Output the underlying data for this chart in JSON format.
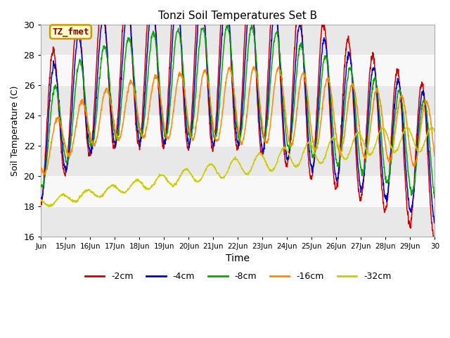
{
  "title": "Tonzi Soil Temperatures Set B",
  "xlabel": "Time",
  "ylabel": "Soil Temperature (C)",
  "ylim": [
    16,
    30
  ],
  "yticks": [
    16,
    18,
    20,
    22,
    24,
    26,
    28,
    30
  ],
  "legend_labels": [
    "-2cm",
    "-4cm",
    "-8cm",
    "-16cm",
    "-32cm"
  ],
  "line_colors": [
    "#cc0000",
    "#0000cc",
    "#00aa00",
    "#ff8800",
    "#cccc00"
  ],
  "annotation_text": "TZ_fmet",
  "annotation_bg": "#ffffcc",
  "annotation_border": "#cc9900",
  "annotation_text_color": "#880000",
  "bg_band_light": "#e8e8e8",
  "bg_band_white": "#f8f8f8",
  "plot_bg": "#f0f0f0",
  "xtick_labels": [
    "Jun",
    "15Jun",
    "16Jun",
    "17Jun",
    "18Jun",
    "19Jun",
    "20Jun",
    "21Jun",
    "22Jun",
    "23Jun",
    "24Jun",
    "25Jun",
    "26Jun",
    "27Jun",
    "28Jun",
    "29Jun",
    "30"
  ],
  "xtick_positions": [
    0,
    1,
    2,
    3,
    4,
    5,
    6,
    7,
    8,
    9,
    10,
    11,
    12,
    13,
    14,
    15,
    16
  ]
}
